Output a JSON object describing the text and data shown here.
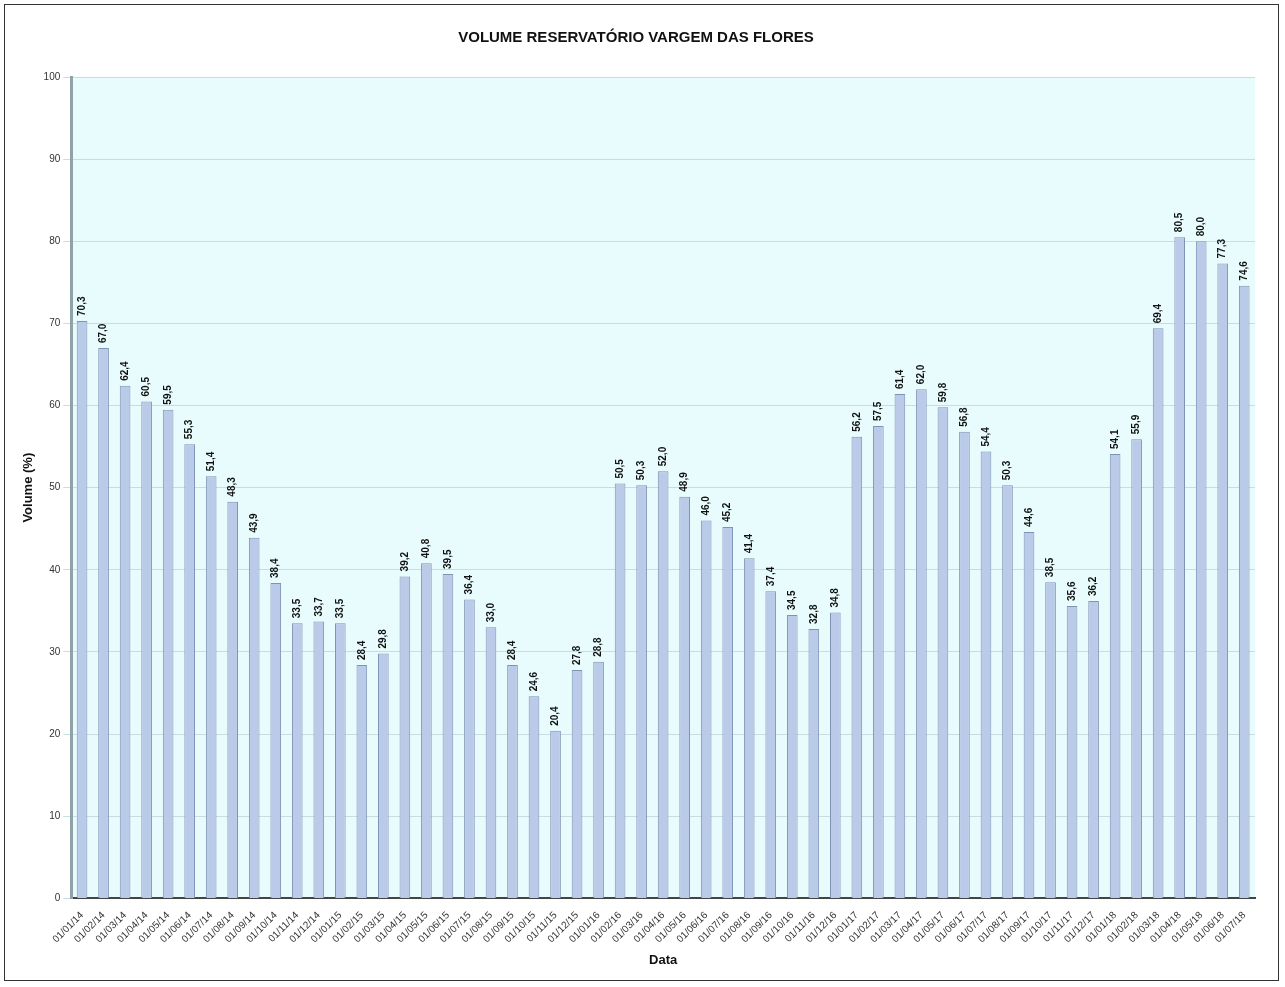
{
  "chart_data": {
    "type": "bar",
    "title": "VOLUME RESERVATÓRIO VARGEM DAS FLORES",
    "xlabel": "Data",
    "ylabel": "Volume (%)",
    "categories": [
      "01/01/14",
      "01/02/14",
      "01/03/14",
      "01/04/14",
      "01/05/14",
      "01/06/14",
      "01/07/14",
      "01/08/14",
      "01/09/14",
      "01/10/14",
      "01/11/14",
      "01/12/14",
      "01/01/15",
      "01/02/15",
      "01/03/15",
      "01/04/15",
      "01/05/15",
      "01/06/15",
      "01/07/15",
      "01/08/15",
      "01/09/15",
      "01/10/15",
      "01/11/15",
      "01/12/15",
      "01/01/16",
      "01/02/16",
      "01/03/16",
      "01/04/16",
      "01/05/16",
      "01/06/16",
      "01/07/16",
      "01/08/16",
      "01/09/16",
      "01/10/16",
      "01/11/16",
      "01/12/16",
      "01/01/17",
      "01/02/17",
      "01/03/17",
      "01/04/17",
      "01/05/17",
      "01/06/17",
      "01/07/17",
      "01/08/17",
      "01/09/17",
      "01/10/17",
      "01/11/17",
      "01/12/17",
      "01/01/18",
      "01/02/18",
      "01/03/18",
      "01/04/18",
      "01/05/18",
      "01/06/18",
      "01/07/18"
    ],
    "values": [
      70.3,
      67.0,
      62.4,
      60.5,
      59.5,
      55.3,
      51.4,
      48.3,
      43.9,
      38.4,
      33.5,
      33.7,
      33.5,
      28.4,
      29.8,
      39.2,
      40.8,
      39.5,
      36.4,
      33.0,
      28.4,
      24.6,
      20.4,
      27.8,
      28.8,
      50.5,
      50.3,
      52.0,
      48.9,
      46.0,
      45.2,
      41.4,
      37.4,
      34.5,
      32.8,
      34.8,
      56.2,
      57.5,
      61.4,
      62.0,
      59.8,
      56.8,
      54.4,
      50.3,
      44.6,
      38.5,
      35.6,
      36.2,
      54.1,
      55.9,
      69.4,
      80.5,
      80.0,
      77.3,
      74.6
    ],
    "value_labels": [
      "70,3",
      "67,0",
      "62,4",
      "60,5",
      "59,5",
      "55,3",
      "51,4",
      "48,3",
      "43,9",
      "38,4",
      "33,5",
      "33,7",
      "33,5",
      "28,4",
      "29,8",
      "39,2",
      "40,8",
      "39,5",
      "36,4",
      "33,0",
      "28,4",
      "24,6",
      "20,4",
      "27,8",
      "28,8",
      "50,5",
      "50,3",
      "52,0",
      "48,9",
      "46,0",
      "45,2",
      "41,4",
      "37,4",
      "34,5",
      "32,8",
      "34,8",
      "56,2",
      "57,5",
      "61,4",
      "62,0",
      "59,8",
      "56,8",
      "54,4",
      "50,3",
      "44,6",
      "38,5",
      "35,6",
      "36,2",
      "54,1",
      "55,9",
      "69,4",
      "80,5",
      "80,0",
      "77,3",
      "74,6"
    ],
    "color": "#b9cbe8",
    "ylim": [
      0,
      100
    ],
    "yticks": [
      0,
      10,
      20,
      30,
      40,
      50,
      60,
      70,
      80,
      90,
      100
    ],
    "grid": "y"
  }
}
